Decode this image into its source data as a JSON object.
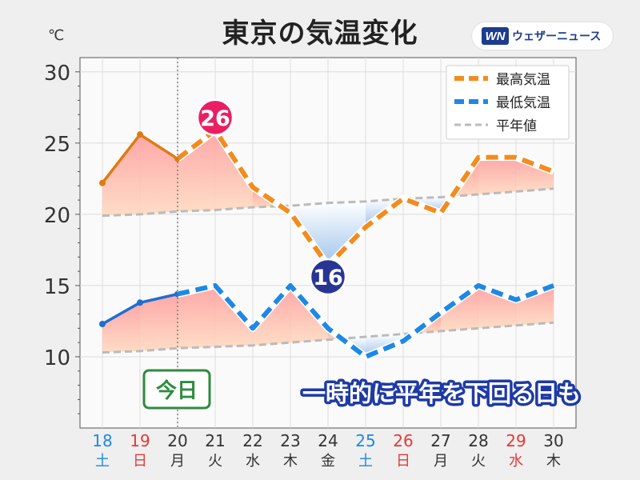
{
  "header": {
    "title": "東京の気温変化",
    "unit": "℃",
    "logo_mark": "WN",
    "logo_text": "ウェザーニュース"
  },
  "chart_data": {
    "type": "line",
    "title": "東京の気温変化",
    "ylabel": "℃",
    "ylim": [
      5,
      31
    ],
    "y_ticks": [
      10,
      15,
      20,
      25,
      30
    ],
    "grid": true,
    "legend_placement": "top-right",
    "categories": [
      {
        "day": "18",
        "weekday": "土",
        "color": "#1e88e5"
      },
      {
        "day": "19",
        "weekday": "日",
        "color": "#e53935"
      },
      {
        "day": "20",
        "weekday": "月",
        "color": "#333333"
      },
      {
        "day": "21",
        "weekday": "火",
        "color": "#333333"
      },
      {
        "day": "22",
        "weekday": "水",
        "color": "#333333"
      },
      {
        "day": "23",
        "weekday": "木",
        "color": "#333333"
      },
      {
        "day": "24",
        "weekday": "金",
        "color": "#333333"
      },
      {
        "day": "25",
        "weekday": "土",
        "color": "#1e88e5"
      },
      {
        "day": "26",
        "weekday": "日",
        "color": "#e53935"
      },
      {
        "day": "27",
        "weekday": "月",
        "color": "#333333"
      },
      {
        "day": "28",
        "weekday": "火",
        "color": "#333333"
      },
      {
        "day": "29",
        "weekday": "水",
        "color": "#e53935"
      },
      {
        "day": "30",
        "weekday": "木",
        "color": "#333333"
      }
    ],
    "today_index": 2,
    "series": [
      {
        "name": "最高気温",
        "color": "#f28c1e",
        "past_color": "#e07a10",
        "values": [
          22.2,
          25.6,
          23.9,
          25.9,
          21.9,
          20.1,
          16.4,
          19.1,
          21.1,
          20.1,
          24.0,
          24.0,
          23.0
        ]
      },
      {
        "name": "最低気温",
        "color": "#1e88e5",
        "past_color": "#1e6fd0",
        "values": [
          12.3,
          13.8,
          14.4,
          15.0,
          12.0,
          15.0,
          12.0,
          10.0,
          11.1,
          13.1,
          15.0,
          14.0,
          15.0
        ]
      },
      {
        "name": "平年値",
        "color": "#bbbbbb",
        "high_normal": [
          19.9,
          20.0,
          20.2,
          20.3,
          20.5,
          20.6,
          20.8,
          20.9,
          21.1,
          21.2,
          21.4,
          21.6,
          21.8
        ],
        "low_normal": [
          10.3,
          10.4,
          10.6,
          10.7,
          10.8,
          11.0,
          11.2,
          11.4,
          11.6,
          11.8,
          12.0,
          12.2,
          12.4
        ]
      }
    ],
    "callouts": [
      {
        "label": "26",
        "index": 3,
        "series": "最高気温",
        "color": "#e91e63"
      },
      {
        "label": "16",
        "index": 6,
        "series": "最高気温",
        "color": "#283593"
      }
    ],
    "today_label": "今日",
    "annotation": "一時的に平年を下回る日も"
  }
}
